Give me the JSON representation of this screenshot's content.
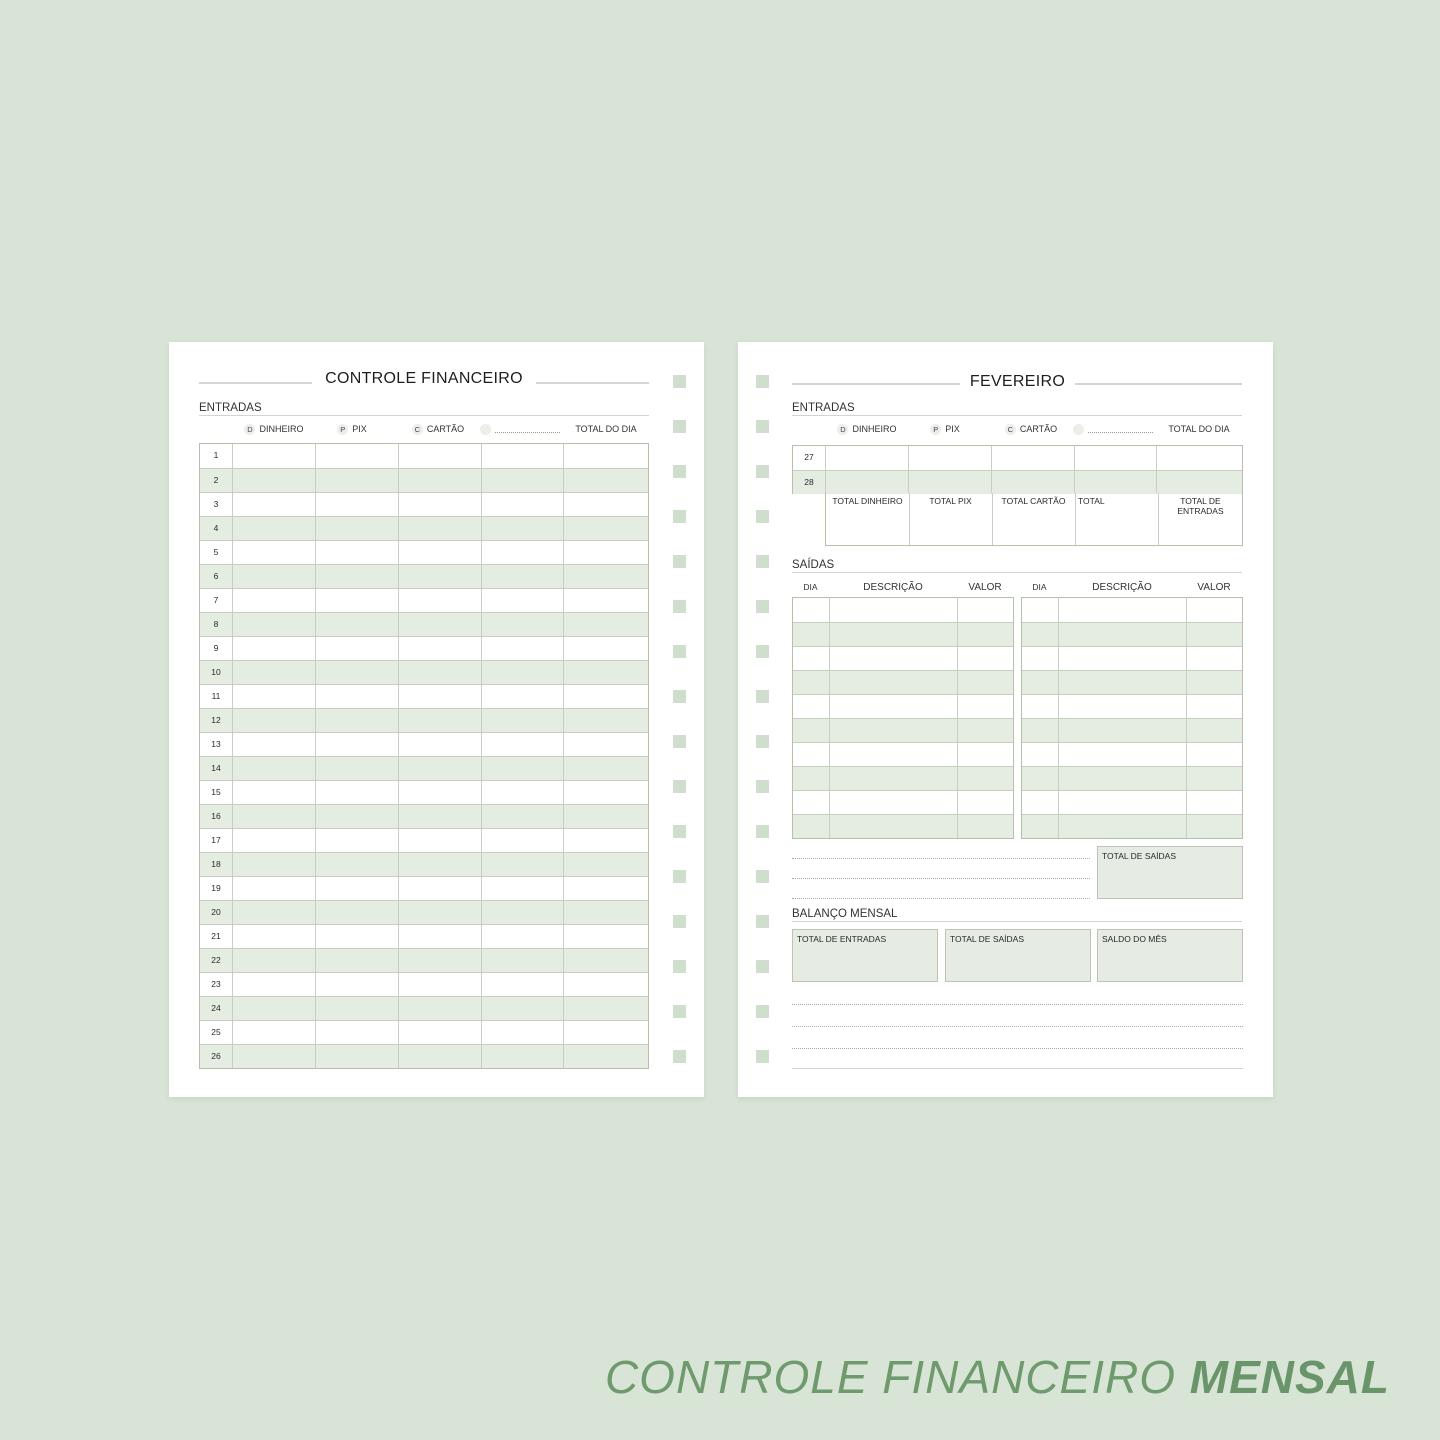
{
  "left_page": {
    "title": "CONTROLE FINANCEIRO",
    "section": "ENTRADAS",
    "columns": [
      {
        "badge": "D",
        "label": "DINHEIRO"
      },
      {
        "badge": "P",
        "label": "PIX"
      },
      {
        "badge": "C",
        "label": "CARTÃO"
      },
      {
        "badge": "",
        "label": ""
      },
      {
        "badge": "",
        "label": "TOTAL DO DIA"
      }
    ],
    "days": [
      "1",
      "2",
      "3",
      "4",
      "5",
      "6",
      "7",
      "8",
      "9",
      "10",
      "11",
      "12",
      "13",
      "14",
      "15",
      "16",
      "17",
      "18",
      "19",
      "20",
      "21",
      "22",
      "23",
      "24",
      "25",
      "26"
    ]
  },
  "right_page": {
    "title": "FEVEREIRO",
    "section": "ENTRADAS",
    "columns": [
      {
        "badge": "D",
        "label": "DINHEIRO"
      },
      {
        "badge": "P",
        "label": "PIX"
      },
      {
        "badge": "C",
        "label": "CARTÃO"
      },
      {
        "badge": "",
        "label": ""
      },
      {
        "badge": "",
        "label": "TOTAL DO DIA"
      }
    ],
    "days": [
      "27",
      "28"
    ],
    "totals": [
      "TOTAL DINHEIRO",
      "TOTAL PIX",
      "TOTAL CARTÃO",
      "TOTAL",
      "TOTAL DE ENTRADAS"
    ],
    "saidas": {
      "section": "SAÍDAS",
      "headers": [
        "DIA",
        "DESCRIÇÃO",
        "VALOR"
      ],
      "total_label": "TOTAL DE SAÍDAS"
    },
    "balanco": {
      "section": "BALANÇO MENSAL",
      "boxes": [
        "TOTAL DE ENTRADAS",
        "TOTAL DE SAÍDAS",
        "SALDO DO MÊS"
      ]
    }
  },
  "footer": {
    "title_light": "CONTROLE FINANCEIRO",
    "title_bold": "MENSAL"
  },
  "colors": {
    "background": "#d8e5d6",
    "shade": "#e5ece2",
    "accent": "#6e9a6d"
  }
}
